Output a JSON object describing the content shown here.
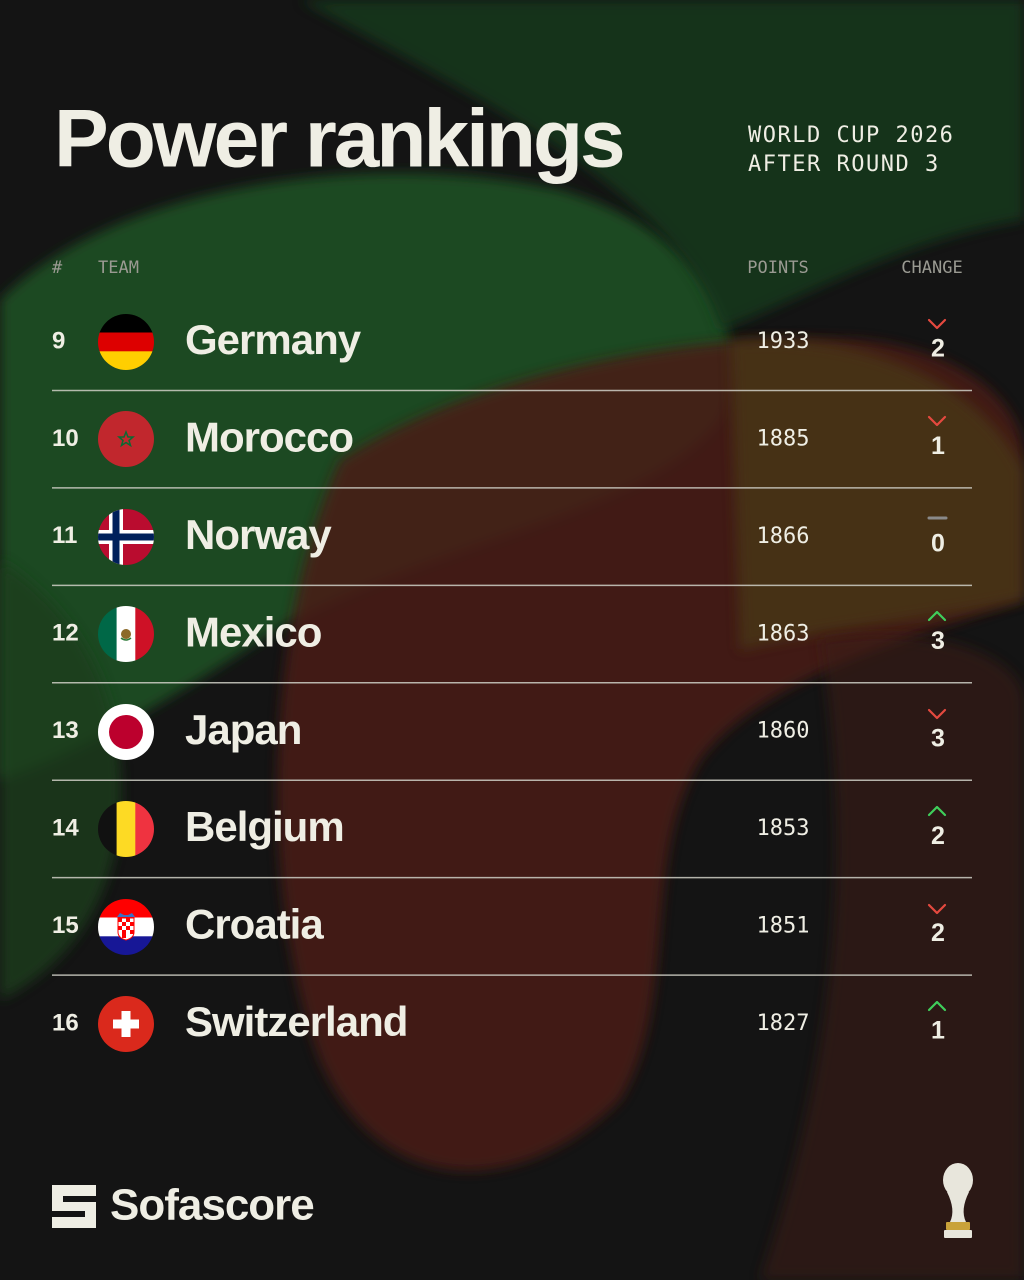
{
  "header": {
    "title": "Power rankings",
    "subtitle": [
      "WORLD CUP 2026",
      "AFTER ROUND 3"
    ]
  },
  "table": {
    "columns": [
      "#",
      "TEAM",
      "POINTS",
      "CHANGE"
    ],
    "rows": [
      {
        "rank": 9,
        "team": "Germany",
        "points": 1933,
        "change": 2
      },
      {
        "rank": 10,
        "team": "Morocco",
        "points": 1885,
        "change": 1
      },
      {
        "rank": 11,
        "team": "Norway",
        "points": 1866,
        "change": 0
      },
      {
        "rank": 12,
        "team": "Mexico",
        "points": 1863,
        "change": 3
      },
      {
        "rank": 13,
        "team": "Japan",
        "points": 1860,
        "change": 3
      },
      {
        "rank": 14,
        "team": "Belgium",
        "points": 1853,
        "change": 2
      },
      {
        "rank": 15,
        "team": "Croatia",
        "points": 1851,
        "change": 2
      },
      {
        "rank": 16,
        "team": "Switzerland",
        "points": 1827,
        "change": 1
      }
    ]
  },
  "footer": {
    "brand": "Sofascore"
  }
}
